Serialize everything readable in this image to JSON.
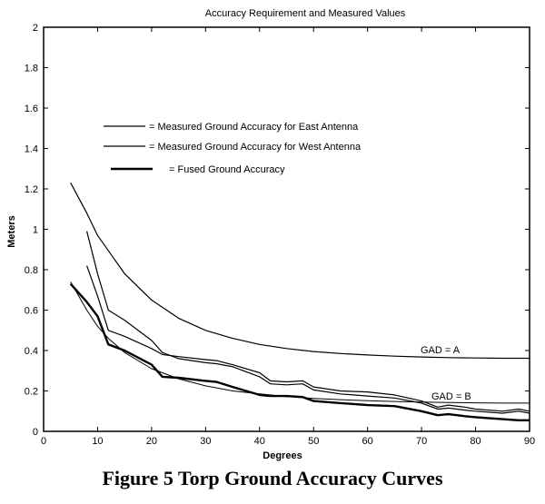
{
  "caption": "Figure 5 Torp Ground Accuracy Curves",
  "chart_data": {
    "type": "line",
    "title": "Accuracy Requirement and Measured Values",
    "xlabel": "Degrees",
    "ylabel": "Meters",
    "xlim": [
      0,
      90
    ],
    "ylim": [
      0,
      2
    ],
    "xticks": [
      0,
      10,
      20,
      30,
      40,
      50,
      60,
      70,
      80,
      90
    ],
    "yticks": [
      0,
      0.2,
      0.4,
      0.6,
      0.8,
      1,
      1.2,
      1.4,
      1.6,
      1.8,
      2
    ],
    "legend": [
      "= Measured Ground Accuracy for East Antenna",
      "= Measured Ground Accuracy for West Antenna",
      "= Fused Ground Accuracy"
    ],
    "annotations": [
      "GAD = A",
      "GAD = B"
    ],
    "series": [
      {
        "name": "GAD = A",
        "points": [
          [
            5,
            1.23
          ],
          [
            8,
            1.08
          ],
          [
            10,
            0.97
          ],
          [
            15,
            0.78
          ],
          [
            20,
            0.65
          ],
          [
            25,
            0.56
          ],
          [
            30,
            0.5
          ],
          [
            35,
            0.46
          ],
          [
            40,
            0.43
          ],
          [
            45,
            0.41
          ],
          [
            50,
            0.395
          ],
          [
            55,
            0.385
          ],
          [
            60,
            0.378
          ],
          [
            65,
            0.372
          ],
          [
            70,
            0.368
          ],
          [
            75,
            0.365
          ],
          [
            80,
            0.363
          ],
          [
            85,
            0.362
          ],
          [
            90,
            0.362
          ]
        ],
        "stroke": 1.2
      },
      {
        "name": "GAD = B",
        "points": [
          [
            5,
            0.74
          ],
          [
            8,
            0.6
          ],
          [
            10,
            0.52
          ],
          [
            12,
            0.46
          ],
          [
            15,
            0.39
          ],
          [
            20,
            0.31
          ],
          [
            25,
            0.26
          ],
          [
            30,
            0.225
          ],
          [
            35,
            0.2
          ],
          [
            40,
            0.185
          ],
          [
            45,
            0.172
          ],
          [
            50,
            0.163
          ],
          [
            55,
            0.157
          ],
          [
            60,
            0.152
          ],
          [
            65,
            0.148
          ],
          [
            70,
            0.145
          ],
          [
            75,
            0.143
          ],
          [
            80,
            0.141
          ],
          [
            85,
            0.14
          ],
          [
            90,
            0.14
          ]
        ],
        "stroke": 1.0
      },
      {
        "name": "= Measured Ground Accuracy for East Antenna",
        "points": [
          [
            8,
            0.82
          ],
          [
            10,
            0.67
          ],
          [
            12,
            0.5
          ],
          [
            15,
            0.47
          ],
          [
            20,
            0.41
          ],
          [
            22,
            0.38
          ],
          [
            25,
            0.37
          ],
          [
            30,
            0.355
          ],
          [
            32,
            0.35
          ],
          [
            35,
            0.33
          ],
          [
            40,
            0.29
          ],
          [
            42,
            0.25
          ],
          [
            45,
            0.245
          ],
          [
            48,
            0.25
          ],
          [
            50,
            0.22
          ],
          [
            55,
            0.2
          ],
          [
            60,
            0.195
          ],
          [
            65,
            0.18
          ],
          [
            70,
            0.15
          ],
          [
            73,
            0.12
          ],
          [
            75,
            0.13
          ],
          [
            78,
            0.12
          ],
          [
            80,
            0.11
          ],
          [
            85,
            0.1
          ],
          [
            88,
            0.11
          ],
          [
            90,
            0.1
          ]
        ],
        "stroke": 1.2
      },
      {
        "name": "= Measured Ground Accuracy for West Antenna",
        "points": [
          [
            8,
            0.99
          ],
          [
            10,
            0.78
          ],
          [
            12,
            0.6
          ],
          [
            15,
            0.55
          ],
          [
            20,
            0.45
          ],
          [
            22,
            0.39
          ],
          [
            25,
            0.36
          ],
          [
            30,
            0.34
          ],
          [
            32,
            0.335
          ],
          [
            35,
            0.32
          ],
          [
            40,
            0.27
          ],
          [
            42,
            0.235
          ],
          [
            45,
            0.23
          ],
          [
            48,
            0.235
          ],
          [
            50,
            0.205
          ],
          [
            55,
            0.185
          ],
          [
            60,
            0.175
          ],
          [
            65,
            0.165
          ],
          [
            70,
            0.14
          ],
          [
            73,
            0.11
          ],
          [
            75,
            0.115
          ],
          [
            78,
            0.105
          ],
          [
            80,
            0.1
          ],
          [
            85,
            0.09
          ],
          [
            88,
            0.1
          ],
          [
            90,
            0.09
          ]
        ],
        "stroke": 1.2
      },
      {
        "name": "= Fused Ground Accuracy",
        "points": [
          [
            5,
            0.73
          ],
          [
            8,
            0.64
          ],
          [
            10,
            0.57
          ],
          [
            12,
            0.43
          ],
          [
            15,
            0.4
          ],
          [
            20,
            0.33
          ],
          [
            22,
            0.27
          ],
          [
            25,
            0.265
          ],
          [
            30,
            0.25
          ],
          [
            32,
            0.245
          ],
          [
            35,
            0.22
          ],
          [
            40,
            0.18
          ],
          [
            42,
            0.175
          ],
          [
            45,
            0.175
          ],
          [
            48,
            0.17
          ],
          [
            50,
            0.15
          ],
          [
            55,
            0.14
          ],
          [
            60,
            0.13
          ],
          [
            65,
            0.125
          ],
          [
            70,
            0.1
          ],
          [
            73,
            0.08
          ],
          [
            75,
            0.085
          ],
          [
            78,
            0.075
          ],
          [
            80,
            0.07
          ],
          [
            85,
            0.06
          ],
          [
            88,
            0.055
          ],
          [
            90,
            0.055
          ]
        ],
        "stroke": 2.4
      }
    ]
  }
}
